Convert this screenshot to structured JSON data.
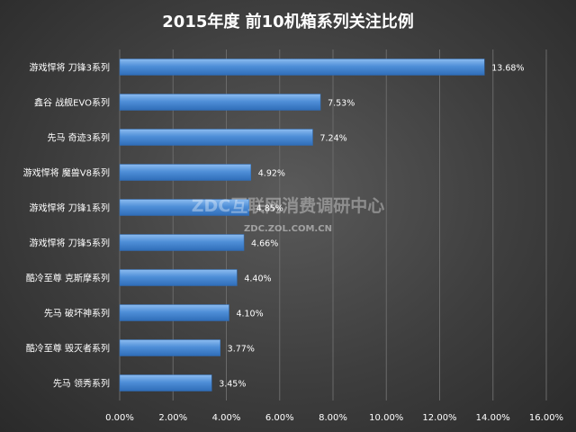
{
  "chart_data": {
    "type": "bar",
    "orientation": "horizontal",
    "title": "2015年度 前10机箱系列关注比例",
    "categories": [
      "游戏悍将 刀锋3系列",
      "鑫谷 战舰EVO系列",
      "先马 奇迹3系列",
      "游戏悍将 魔兽V8系列",
      "游戏悍将 刀锋1系列",
      "游戏悍将 刀锋5系列",
      "酷冷至尊 克斯摩系列",
      "先马 破坏神系列",
      "酷冷至尊 毁灭者系列",
      "先马 领秀系列"
    ],
    "values": [
      13.68,
      7.53,
      7.24,
      4.92,
      4.85,
      4.66,
      4.4,
      4.1,
      3.77,
      3.45
    ],
    "value_labels": [
      "13.68%",
      "7.53%",
      "7.24%",
      "4.92%",
      "4.85%",
      "4.66%",
      "4.40%",
      "4.10%",
      "3.77%",
      "3.45%"
    ],
    "xlim": [
      0,
      16
    ],
    "x_ticks": [
      0,
      2,
      4,
      6,
      8,
      10,
      12,
      14,
      16
    ],
    "x_tick_labels": [
      "0.00%",
      "2.00%",
      "4.00%",
      "6.00%",
      "8.00%",
      "10.00%",
      "12.00%",
      "14.00%",
      "16.00%"
    ],
    "grid": true,
    "legend": "none",
    "colors": {
      "bar": "#4f8fd8",
      "bar_light": "#8cbcf0",
      "bar_dark": "#2f6db8",
      "grid": "#6a6a6a",
      "text": "#ffffff"
    }
  },
  "watermark": {
    "main": "ZDC互联网消费调研中心",
    "sub": "ZDC.ZOL.COM.CN"
  }
}
